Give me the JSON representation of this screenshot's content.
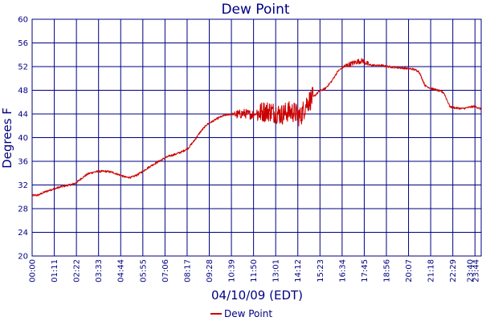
{
  "colors": {
    "axis": "#000080",
    "grid": "#000080",
    "series": "#cc0000",
    "plot_bg": "#ffffff"
  },
  "chart_data": {
    "type": "line",
    "title": "Dew Point",
    "xlabel": "04/10/09 (EDT)",
    "ylabel": "Degrees F",
    "ylim": [
      20,
      60
    ],
    "yticks": [
      20,
      24,
      28,
      32,
      36,
      40,
      44,
      48,
      52,
      56,
      60
    ],
    "xlim_minutes": [
      0,
      1440
    ],
    "xtick_labels": [
      "00:00",
      "01:11",
      "02:22",
      "03:33",
      "04:44",
      "05:55",
      "07:06",
      "08:17",
      "09:28",
      "10:39",
      "11:50",
      "13:01",
      "14:12",
      "15:23",
      "16:34",
      "17:45",
      "18:56",
      "20:07",
      "21:18",
      "22:29",
      "23:40",
      "23:44"
    ],
    "grid": true,
    "legend_position": "bottom-center",
    "series": [
      {
        "name": "Dew Point",
        "x_minutes": [
          0,
          20,
          40,
          60,
          80,
          100,
          120,
          140,
          160,
          180,
          200,
          220,
          240,
          260,
          280,
          300,
          320,
          340,
          360,
          380,
          400,
          420,
          440,
          460,
          480,
          500,
          520,
          540,
          560,
          580,
          600,
          620,
          640,
          660,
          680,
          700,
          720,
          740,
          760,
          780,
          800,
          820,
          840,
          860,
          880,
          900,
          920,
          940,
          960,
          980,
          1000,
          1020,
          1040,
          1060,
          1080,
          1100,
          1120,
          1140,
          1160,
          1180,
          1200,
          1220,
          1240,
          1260,
          1280,
          1300,
          1320,
          1340,
          1360,
          1380,
          1400,
          1420,
          1440
        ],
        "values": [
          30.2,
          30.3,
          30.8,
          31.2,
          31.5,
          31.8,
          32.0,
          32.3,
          33.2,
          33.9,
          34.2,
          34.3,
          34.3,
          34.1,
          33.7,
          33.3,
          33.3,
          33.8,
          34.5,
          35.2,
          35.8,
          36.4,
          36.9,
          37.2,
          37.6,
          38.2,
          39.5,
          41.0,
          42.2,
          42.8,
          43.4,
          43.8,
          44.0,
          43.9,
          44.1,
          43.9,
          44.0,
          44.4,
          44.5,
          44.2,
          43.9,
          44.4,
          44.3,
          43.5,
          45.8,
          46.8,
          47.8,
          48.3,
          49.5,
          51.2,
          52.0,
          52.4,
          52.8,
          53.0,
          52.3,
          52.2,
          52.2,
          52.0,
          51.9,
          51.8,
          51.7,
          51.6,
          51.2,
          48.8,
          48.3,
          48.0,
          47.6,
          45.2,
          45.0,
          44.9,
          45.1,
          45.3,
          44.8
        ],
        "noise_minutes": [
          [
            650,
            710
          ],
          [
            720,
            900
          ]
        ],
        "noise_amplitude": [
          0.8,
          1.8
        ]
      }
    ]
  }
}
